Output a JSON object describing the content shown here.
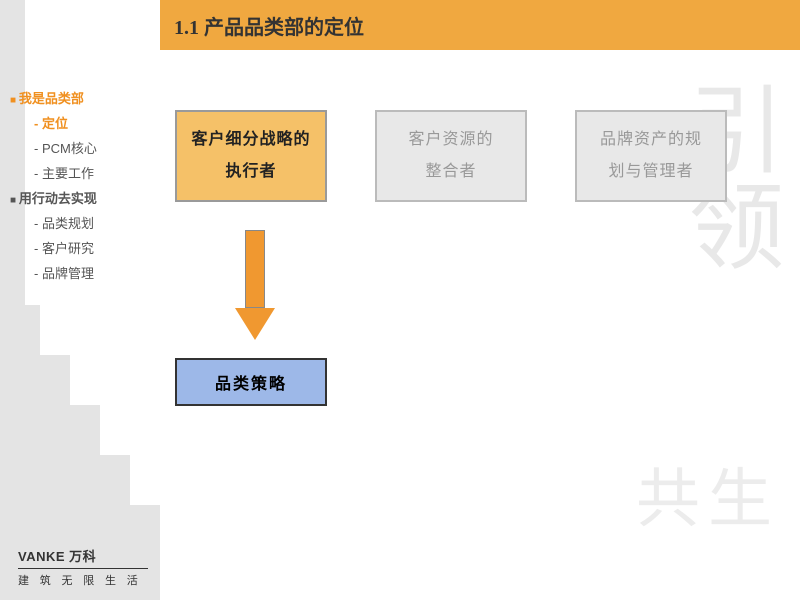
{
  "header": {
    "title": "1.1 产品品类部的定位"
  },
  "nav": {
    "items": [
      {
        "label": "我是品类部",
        "cls": "nav-bullet top active"
      },
      {
        "label": "定位",
        "cls": "sub active"
      },
      {
        "label": "PCM核心",
        "cls": "sub"
      },
      {
        "label": "主要工作",
        "cls": "sub"
      },
      {
        "label": "用行动去实现",
        "cls": "nav-bullet top"
      },
      {
        "label": "品类规划",
        "cls": "sub"
      },
      {
        "label": "客户研究",
        "cls": "sub"
      },
      {
        "label": "品牌管理",
        "cls": "sub"
      }
    ]
  },
  "boxes": {
    "row": [
      {
        "text": "客户细分战略的\n执行者",
        "style": "orange"
      },
      {
        "text": "客户资源的\n整合者",
        "style": "gray"
      },
      {
        "text": "品牌资产的规\n划与管理者",
        "style": "gray"
      }
    ],
    "result": {
      "text": "品类策略",
      "style": "blue"
    }
  },
  "watermark": {
    "main": "引领",
    "sub": "共生"
  },
  "footer": {
    "brand": "VANKE 万科",
    "sub": "建 筑 无 限 生 活"
  },
  "colors": {
    "header_bg": "#f0a840",
    "box_orange_bg": "#f5c168",
    "box_gray_bg": "#e8e8e8",
    "box_blue_bg": "#9db8e8",
    "arrow_color": "#f09830",
    "sidebar_bg": "#e4e4e4",
    "nav_active": "#f09020"
  }
}
